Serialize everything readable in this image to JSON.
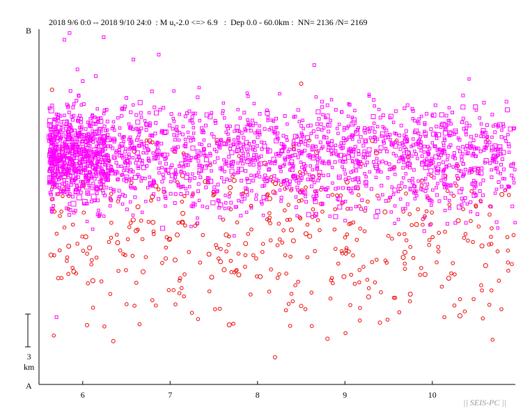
{
  "header": {
    "title": "2018 9/6 0:0 -- 2018 9/10 24:0  : M u,-2.0 <=> 6.9   :  Dep 0.0 - 60.0km :  NN= 2136 /N= 2169"
  },
  "chart_data": {
    "type": "scatter",
    "section_end_top": "B",
    "section_end_bottom": "A",
    "x_tick_labels": [
      "6",
      "7",
      "8",
      "9",
      "10"
    ],
    "x_ticks": [
      6,
      7,
      8,
      9,
      10
    ],
    "xlim": [
      5.5,
      10.95
    ],
    "ylim": [
      0,
      57.5
    ],
    "y_direction": "profile distance, B at top (0 km) to A at bottom",
    "scale_bar": {
      "value": 3,
      "number": "3",
      "unit": "km"
    },
    "watermark": "|| SEIS-PC ||",
    "total_events": 2169,
    "plotted_events": 2136,
    "series": [
      {
        "marker": "square",
        "color": "#ff00ff",
        "description_range_km": [
          2,
          48
        ]
      },
      {
        "marker": "circle",
        "color": "#ee0000",
        "description_range_km": [
          10,
          54
        ]
      }
    ],
    "magenta_points": [
      [
        5.85,
        0.6
      ],
      [
        5.79,
        1.7
      ],
      [
        6.24,
        1.3
      ],
      [
        6.87,
        4.1
      ],
      [
        5.94,
        6.5
      ],
      [
        6.0,
        8.4
      ],
      [
        6.15,
        7.6
      ],
      [
        5.86,
        10.0
      ],
      [
        5.82,
        12.2
      ],
      [
        8.65,
        5.8
      ],
      [
        8.8,
        12.3
      ],
      [
        6.58,
        4.9
      ],
      [
        6.5,
        11.1
      ],
      [
        7.5,
        17.4
      ],
      [
        5.7,
        46.6
      ]
    ],
    "red_points": [
      [
        5.65,
        9.8
      ],
      [
        6.35,
        50.5
      ],
      [
        8.2,
        53.1
      ],
      [
        8.5,
        8.8
      ],
      [
        8.8,
        50.1
      ],
      [
        9.4,
        47.5
      ],
      [
        8.5,
        44.8
      ],
      [
        6.05,
        47.9
      ],
      [
        6.95,
        37.1
      ],
      [
        5.72,
        40.3
      ]
    ],
    "dense_model": {
      "magenta_cloud": {
        "x_range": [
          5.6,
          10.95
        ],
        "y_core": [
          15,
          27
        ],
        "count": 1700
      },
      "magenta_cluster": {
        "x_range": [
          5.62,
          6.3
        ],
        "y_core": [
          15,
          26
        ],
        "count": 420
      },
      "red_scatter": {
        "x_range": [
          5.6,
          10.95
        ],
        "y_core": [
          22,
          46
        ],
        "count": 430
      }
    }
  }
}
